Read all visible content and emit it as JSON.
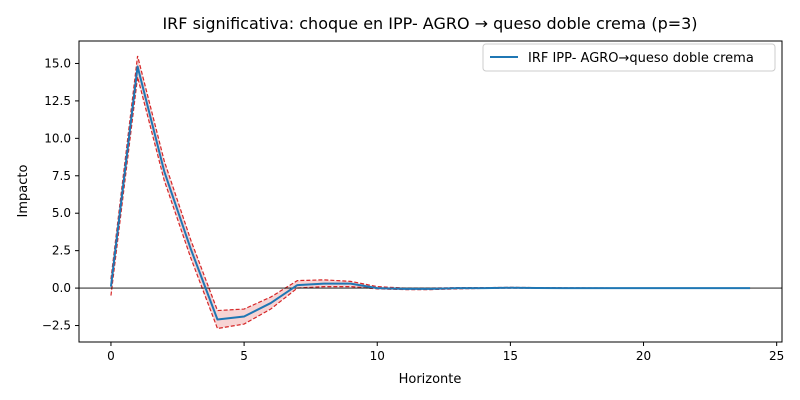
{
  "chart_data": {
    "type": "line",
    "title": "IRF significativa: choque en IPP- AGRO → queso doble crema (p=3)",
    "xlabel": "Horizonte",
    "ylabel": "Impacto",
    "xlim": [
      -1.2,
      25.2
    ],
    "ylim": [
      -3.6,
      16.5
    ],
    "xticks": [
      0,
      5,
      10,
      15,
      20,
      25
    ],
    "xtick_labels": [
      "0",
      "5",
      "10",
      "15",
      "20",
      "25"
    ],
    "yticks": [
      -2.5,
      0.0,
      2.5,
      5.0,
      7.5,
      10.0,
      12.5,
      15.0
    ],
    "ytick_labels": [
      "−2.5",
      "0.0",
      "2.5",
      "5.0",
      "7.5",
      "10.0",
      "12.5",
      "15.0"
    ],
    "grid": false,
    "legend_position": "upper right",
    "zero_line": true,
    "x": [
      0,
      1,
      2,
      3,
      4,
      5,
      6,
      7,
      8,
      9,
      10,
      11,
      12,
      13,
      14,
      15,
      16,
      17,
      18,
      19,
      20,
      21,
      22,
      23,
      24
    ],
    "series": [
      {
        "name": "IRF IPP- AGRO→queso doble crema",
        "color": "#1f77b4",
        "values": [
          0.1,
          14.8,
          7.8,
          2.6,
          -2.1,
          -1.9,
          -1.0,
          0.2,
          0.3,
          0.3,
          0.0,
          -0.05,
          -0.05,
          0.0,
          0.0,
          0.02,
          0.01,
          0.0,
          0.0,
          0.0,
          0.0,
          0.0,
          0.0,
          0.0,
          0.0
        ]
      }
    ],
    "band": {
      "color": "#d62728",
      "fill": "#d62728",
      "lower": [
        -0.5,
        14.1,
        7.2,
        2.0,
        -2.7,
        -2.4,
        -1.4,
        0.0,
        0.1,
        0.1,
        -0.05,
        -0.1,
        -0.1,
        -0.05,
        -0.02,
        0.0,
        0.0,
        0.0,
        0.0,
        0.0,
        0.0,
        0.0,
        0.0,
        0.0,
        0.0
      ],
      "upper": [
        0.6,
        15.5,
        8.5,
        3.2,
        -1.5,
        -1.4,
        -0.6,
        0.5,
        0.55,
        0.45,
        0.1,
        0.0,
        0.0,
        0.03,
        0.03,
        0.05,
        0.03,
        0.02,
        0.01,
        0.0,
        0.0,
        0.0,
        0.0,
        0.0,
        0.0
      ]
    }
  }
}
